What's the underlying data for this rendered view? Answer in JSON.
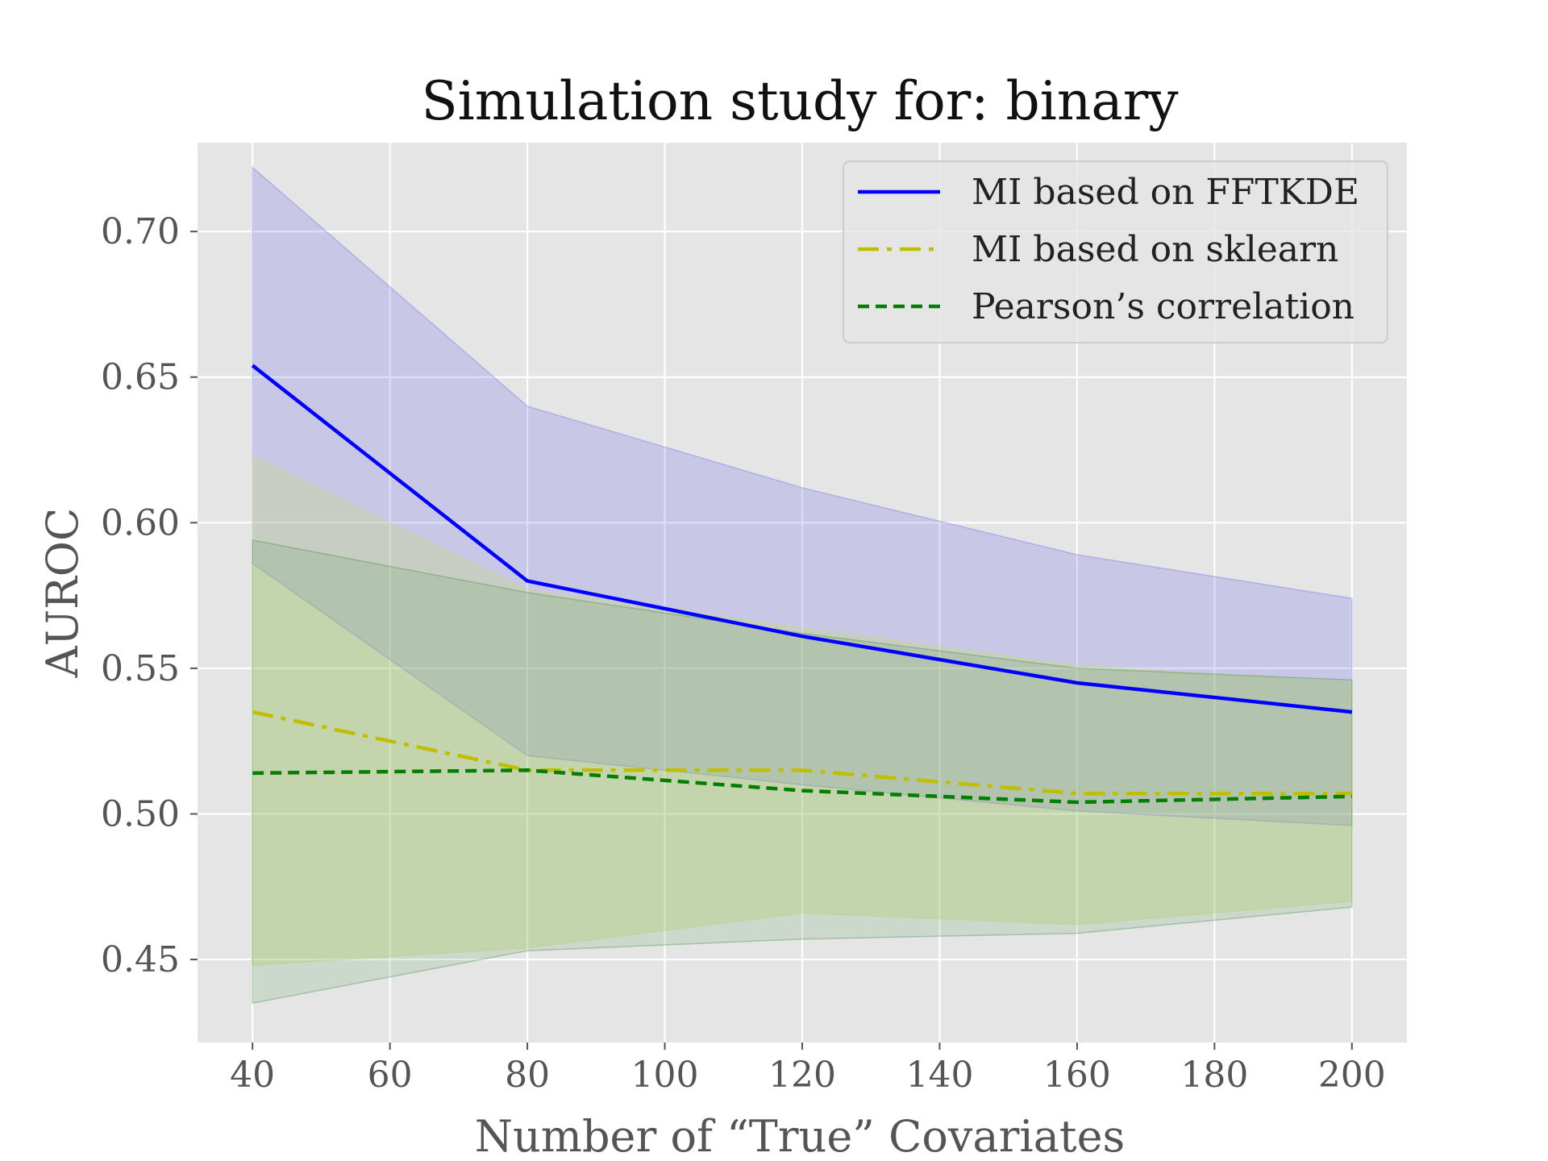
{
  "chart_data": {
    "type": "line",
    "title": "Simulation study for: binary",
    "xlabel": "Number of “True” Covariates",
    "ylabel": "AUROC",
    "x": [
      40,
      80,
      120,
      160,
      200
    ],
    "xlim": [
      32,
      208
    ],
    "ylim": [
      0.4215,
      0.7305
    ],
    "xticks": [
      "40",
      "60",
      "80",
      "100",
      "120",
      "140",
      "160",
      "180",
      "200"
    ],
    "yticks": [
      "0.45",
      "0.50",
      "0.55",
      "0.60",
      "0.65",
      "0.70"
    ],
    "grid": true,
    "legend_position": "top-right",
    "series": [
      {
        "name": "MI based on FFTKDE",
        "color": "#0000ff",
        "style": "solid",
        "values": [
          0.654,
          0.58,
          0.561,
          0.545,
          0.535
        ],
        "upper": [
          0.722,
          0.64,
          0.612,
          0.589,
          0.574
        ],
        "lower": [
          0.586,
          0.52,
          0.51,
          0.501,
          0.496
        ],
        "band_color": "#6666ee",
        "band_opacity": 0.22
      },
      {
        "name": "MI based on sklearn",
        "color": "#bfbf00",
        "style": "dashdot",
        "values": [
          0.535,
          0.515,
          0.515,
          0.507,
          0.507
        ],
        "upper": [
          0.623,
          0.577,
          0.564,
          0.551,
          0.545
        ],
        "lower": [
          0.448,
          0.454,
          0.466,
          0.462,
          0.47
        ],
        "band_color": "#c8dc70",
        "band_opacity": 0.3
      },
      {
        "name": "Pearson’s correlation",
        "color": "#007f00",
        "style": "dashed",
        "values": [
          0.514,
          0.515,
          0.508,
          0.504,
          0.506
        ],
        "upper": [
          0.594,
          0.576,
          0.562,
          0.55,
          0.546
        ],
        "lower": [
          0.435,
          0.453,
          0.457,
          0.459,
          0.468
        ],
        "band_color": "#3c8c3c",
        "band_opacity": 0.15
      }
    ]
  }
}
